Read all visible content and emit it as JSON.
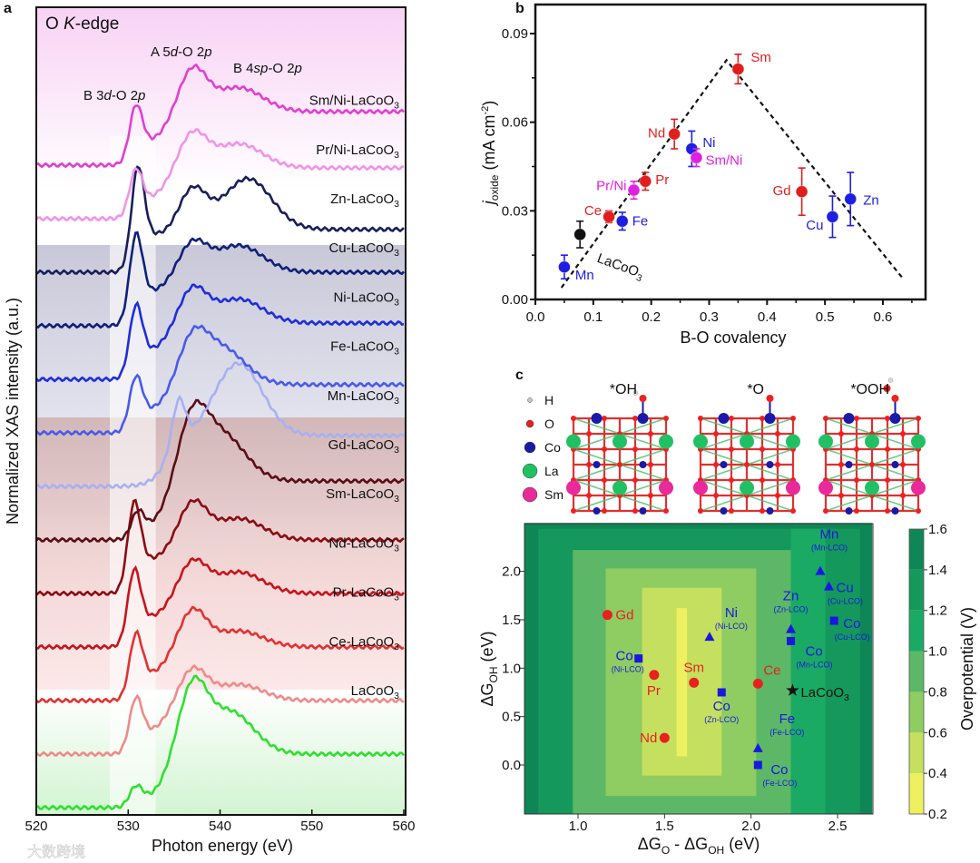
{
  "figure": {
    "panel_labels": {
      "a": "a",
      "b": "b",
      "c": "c"
    },
    "watermark": "大数跨境"
  },
  "chart_data": [
    {
      "id": "a",
      "type": "line",
      "title": "O K-edge",
      "title_parts": {
        "pre": "O ",
        "italic": "K",
        "post": "-edge"
      },
      "annotations": [
        {
          "text": "B 3d-O 2p",
          "parts": [
            "B 3",
            "d",
            "-O 2",
            "p"
          ]
        },
        {
          "text": "A 5d-O 2p",
          "parts": [
            "A 5",
            "d",
            "-O 2",
            "p"
          ]
        },
        {
          "text": "B 4sp-O 2p",
          "parts": [
            "B 4",
            "sp",
            "-O 2",
            "p"
          ]
        }
      ],
      "xlabel": "Photon energy (eV)",
      "ylabel": "Normalized XAS intensity (a.u.)",
      "xlim": [
        520,
        560
      ],
      "xticks": [
        520,
        530,
        540,
        550,
        560
      ],
      "shaded_region_eV": [
        528,
        533
      ],
      "series_note": "stacked, offset vertically; parameters describe peak amplitudes in units of stack spacing",
      "series": [
        {
          "name": "LaCoO3",
          "color": "#2fe02f",
          "pre": 0.3,
          "pre_e": 530.8,
          "m1": 2.2,
          "m2": 1.8,
          "m2_e": 541,
          "tail": 1.0
        },
        {
          "name": "Ce-LaCoO3",
          "color": "#f08a8a",
          "pre": 0.8,
          "pre_e": 530.8,
          "m1": 1.6,
          "m2": 1.3,
          "m2_e": 542,
          "tail": 1.0
        },
        {
          "name": "Pr-LaCoO3",
          "color": "#e23232",
          "pre": 0.95,
          "pre_e": 530.8,
          "m1": 1.7,
          "m2": 1.3,
          "m2_e": 542,
          "tail": 1.0
        },
        {
          "name": "Nd-LaCoO3",
          "color": "#c8141e",
          "pre": 1.1,
          "pre_e": 530.6,
          "m1": 1.6,
          "m2": 1.4,
          "m2_e": 542,
          "tail": 1.0
        },
        {
          "name": "Sm-LaCoO3",
          "color": "#8a0d14",
          "pre": 1.3,
          "pre_e": 530.6,
          "m1": 1.7,
          "m2": 1.4,
          "m2_e": 542,
          "tail": 1.0
        },
        {
          "name": "Gd-LaCoO3",
          "color": "#5a0e18",
          "pre": 0.4,
          "pre_e": 531,
          "m1": 2.1,
          "m2": 2.0,
          "m2_e": 540,
          "tail": 1.1
        },
        {
          "name": "Mn-LaCoO3",
          "color": "#a8b0f0",
          "pre": 0.8,
          "pre_e": 535.5,
          "m1": 0.9,
          "m2": 2.3,
          "m2_e": 542,
          "tail": 0.95
        },
        {
          "name": "Fe-LaCoO3",
          "color": "#4a5ae8",
          "pre": 0.8,
          "pre_e": 530.8,
          "m1": 1.6,
          "m2": 1.6,
          "m2_e": 540,
          "tail": 0.9
        },
        {
          "name": "Ni-LaCoO3",
          "color": "#1f2ed8",
          "pre": 1.05,
          "pre_e": 530.8,
          "m1": 1.7,
          "m2": 1.5,
          "m2_e": 542,
          "tail": 1.05
        },
        {
          "name": "Cu-LaCoO3",
          "color": "#10207a",
          "pre": 1.3,
          "pre_e": 530.8,
          "m1": 1.55,
          "m2": 1.5,
          "m2_e": 542,
          "tail": 1.0
        },
        {
          "name": "Zn-LaCoO3",
          "color": "#1a1f5a",
          "pre": 1.5,
          "pre_e": 531,
          "m1": 1.55,
          "m2": 1.75,
          "m2_e": 543,
          "tail": 0.8
        },
        {
          "name": "Pr/Ni-LaCoO3",
          "color": "#f094e8",
          "pre": 0.7,
          "pre_e": 530.8,
          "m1": 1.6,
          "m2": 1.4,
          "m2_e": 542,
          "tail": 0.95
        },
        {
          "name": "Sm/Ni-LaCoO3",
          "color": "#e040d0",
          "pre": 0.85,
          "pre_e": 530.8,
          "m1": 1.8,
          "m2": 1.45,
          "m2_e": 542,
          "tail": 1.0
        }
      ]
    },
    {
      "id": "b",
      "type": "scatter",
      "xlabel": "B-O covalency",
      "ylabel_parts": {
        "main": "j",
        "sub": "oxide",
        "rest": " (mA cm",
        "sup": "-2",
        "end": ")"
      },
      "xlim": [
        0,
        0.68
      ],
      "ylim": [
        0,
        0.1
      ],
      "xticks": [
        "0.0",
        "0.1",
        "0.2",
        "0.3",
        "0.4",
        "0.5",
        "0.6"
      ],
      "yticks": [
        "0.00",
        "0.03",
        "0.06",
        "0.09"
      ],
      "trend_line": [
        [
          0.045,
          0.004
        ],
        [
          0.33,
          0.081
        ],
        [
          0.635,
          0.007
        ]
      ],
      "points": [
        {
          "label": "Mn",
          "x": 0.05,
          "y": 0.011,
          "err": 0.004,
          "color": "#1e1ee0"
        },
        {
          "label": "LaCoO3",
          "x": 0.077,
          "y": 0.022,
          "err": 0.0045,
          "color": "#111111"
        },
        {
          "label": "Ce",
          "x": 0.127,
          "y": 0.028,
          "err": 0.002,
          "color": "#e01e1e"
        },
        {
          "label": "Fe",
          "x": 0.15,
          "y": 0.0265,
          "err": 0.003,
          "color": "#1e1ee0"
        },
        {
          "label": "Pr/Ni",
          "x": 0.17,
          "y": 0.037,
          "err": 0.003,
          "color": "#e020e0"
        },
        {
          "label": "Pr",
          "x": 0.19,
          "y": 0.04,
          "err": 0.003,
          "color": "#e01e1e"
        },
        {
          "label": "Nd",
          "x": 0.24,
          "y": 0.056,
          "err": 0.005,
          "color": "#e01e1e"
        },
        {
          "label": "Ni",
          "x": 0.27,
          "y": 0.051,
          "err": 0.006,
          "color": "#1e1ee0"
        },
        {
          "label": "Sm/Ni",
          "x": 0.278,
          "y": 0.048,
          "err": 0.003,
          "color": "#e020e0"
        },
        {
          "label": "Sm",
          "x": 0.35,
          "y": 0.078,
          "err": 0.005,
          "color": "#e01e1e"
        },
        {
          "label": "Gd",
          "x": 0.46,
          "y": 0.0365,
          "err": 0.008,
          "color": "#e01e1e"
        },
        {
          "label": "Cu",
          "x": 0.513,
          "y": 0.028,
          "err": 0.007,
          "color": "#1e1ee0"
        },
        {
          "label": "Zn",
          "x": 0.544,
          "y": 0.034,
          "err": 0.009,
          "color": "#1e1ee0"
        }
      ]
    },
    {
      "id": "c",
      "type": "heatmap",
      "structures": [
        "*OH",
        "*O",
        "*OOH"
      ],
      "atom_legend": [
        {
          "label": "H",
          "color": "#c8c8c8"
        },
        {
          "label": "O",
          "color": "#e82020"
        },
        {
          "label": "Co",
          "color": "#1a1aa8"
        },
        {
          "label": "La",
          "color": "#20c060"
        },
        {
          "label": "Sm",
          "color": "#e82a9a"
        }
      ],
      "xlabel_parts": {
        "a": "ΔG",
        "asub": "O",
        "mid": " - ΔG",
        "bsub": "OH",
        "end": " (eV)"
      },
      "ylabel_parts": {
        "a": "ΔG",
        "asub": "OH",
        "end": " (eV)"
      },
      "xlim": [
        0.69,
        2.7
      ],
      "ylim": [
        -0.51,
        2.5
      ],
      "xticks": [
        "1.0",
        "1.5",
        "2.0",
        "2.5"
      ],
      "yticks": [
        "0.0",
        "0.5",
        "1.0",
        "1.5",
        "2.0"
      ],
      "colorbar": {
        "label": "Overpotential (V)",
        "ticks": [
          "0.2",
          "0.4",
          "0.6",
          "0.8",
          "1.0",
          "1.2",
          "1.4",
          "1.6"
        ],
        "levels": [
          "#eef060",
          "#c5e05e",
          "#8fcc62",
          "#5cb866",
          "#1aaa64",
          "#14985c",
          "#0f8655"
        ]
      },
      "contour_regions": [
        {
          "x": [
            0.69,
            2.7
          ],
          "y": [
            -0.51,
            2.5
          ],
          "level": 6
        },
        {
          "x": [
            0.77,
            2.63
          ],
          "y": [
            -0.51,
            2.44
          ],
          "level": 5
        },
        {
          "x": [
            2.23,
            2.43
          ],
          "y": [
            -0.51,
            2.44
          ],
          "level": 4
        },
        {
          "x": [
            0.97,
            2.23
          ],
          "y": [
            -0.51,
            2.22
          ],
          "level": 3
        },
        {
          "x": [
            1.16,
            2.03
          ],
          "y": [
            -0.32,
            2.03
          ],
          "level": 2
        },
        {
          "x": [
            1.37,
            1.83
          ],
          "y": [
            -0.11,
            1.83
          ],
          "level": 1
        },
        {
          "x": [
            1.57,
            1.63
          ],
          "y": [
            0.09,
            1.62
          ],
          "level": 0
        }
      ],
      "points": [
        {
          "label": "Gd",
          "sub": "",
          "marker": "circle",
          "x": 1.17,
          "y": 1.55,
          "color": "#e8201e"
        },
        {
          "label": "Pr",
          "sub": "",
          "marker": "circle",
          "x": 1.44,
          "y": 0.93,
          "color": "#e8201e"
        },
        {
          "label": "Sm",
          "sub": "",
          "marker": "circle",
          "x": 1.67,
          "y": 0.85,
          "color": "#e8201e"
        },
        {
          "label": "Ce",
          "sub": "",
          "marker": "circle",
          "x": 2.04,
          "y": 0.84,
          "color": "#e8201e"
        },
        {
          "label": "Nd",
          "sub": "",
          "marker": "circle",
          "x": 1.5,
          "y": 0.28,
          "color": "#e8201e"
        },
        {
          "label": "Ni",
          "sub": "(Ni-LCO)",
          "marker": "triangle",
          "x": 1.76,
          "y": 1.32,
          "color": "#1818e0"
        },
        {
          "label": "Zn",
          "sub": "(Zn-LCO)",
          "marker": "triangle",
          "x": 2.23,
          "y": 1.4,
          "color": "#1818e0"
        },
        {
          "label": "Mn",
          "sub": "(Mn-LCO)",
          "marker": "triangle",
          "x": 2.4,
          "y": 2.0,
          "color": "#1818e0"
        },
        {
          "label": "Cu",
          "sub": "(Cu-LCO)",
          "marker": "triangle",
          "x": 2.45,
          "y": 1.84,
          "color": "#1818e0"
        },
        {
          "label": "Fe",
          "sub": "(Fe-LCO)",
          "marker": "triangle",
          "x": 2.04,
          "y": 0.17,
          "color": "#1818e0"
        },
        {
          "label": "Co",
          "sub": "(Ni-LCO)",
          "marker": "square",
          "x": 1.35,
          "y": 1.1,
          "color": "#1818e0"
        },
        {
          "label": "Co",
          "sub": "(Zn-LCO)",
          "marker": "square",
          "x": 1.83,
          "y": 0.75,
          "color": "#1818e0"
        },
        {
          "label": "Co",
          "sub": "(Mn-LCO)",
          "marker": "square",
          "x": 2.23,
          "y": 1.28,
          "color": "#1818e0"
        },
        {
          "label": "Co",
          "sub": "(Cu-LCO)",
          "marker": "square",
          "x": 2.48,
          "y": 1.49,
          "color": "#1818e0"
        },
        {
          "label": "Co",
          "sub": "(Fe-LCO)",
          "marker": "square",
          "x": 2.04,
          "y": 0.0,
          "color": "#1818e0"
        },
        {
          "label": "LaCoO3",
          "sub": "",
          "marker": "star",
          "x": 2.24,
          "y": 0.77,
          "color": "#111111"
        }
      ]
    }
  ]
}
